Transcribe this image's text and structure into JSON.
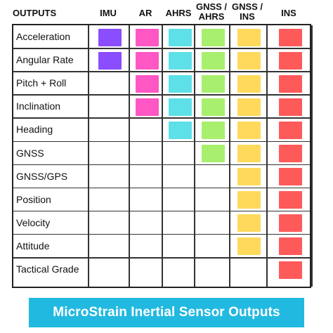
{
  "header": {
    "outputs_label": "OUTPUTS",
    "columns": [
      {
        "key": "imu",
        "line1": "IMU",
        "line2": ""
      },
      {
        "key": "ar",
        "line1": "AR",
        "line2": ""
      },
      {
        "key": "ahrs",
        "line1": "AHRS",
        "line2": ""
      },
      {
        "key": "gnss_ahrs",
        "line1": "GNSS /",
        "line2": "AHRS"
      },
      {
        "key": "gnss_ins",
        "line1": "GNSS /",
        "line2": "INS"
      },
      {
        "key": "ins",
        "line1": "INS",
        "line2": ""
      }
    ]
  },
  "colors": {
    "imu": "#8a4dff",
    "ar": "#ff57c4",
    "ahrs": "#5ee0e8",
    "gnss_ahrs": "#a8ef6e",
    "gnss_ins": "#ffd95c",
    "ins": "#ff5a5a"
  },
  "rows": [
    {
      "label": "Acceleration",
      "marks": [
        1,
        1,
        1,
        1,
        1,
        1
      ]
    },
    {
      "label": "Angular Rate",
      "marks": [
        1,
        1,
        1,
        1,
        1,
        1
      ]
    },
    {
      "label": "Pitch + Roll",
      "marks": [
        0,
        1,
        1,
        1,
        1,
        1
      ]
    },
    {
      "label": "Inclination",
      "marks": [
        0,
        1,
        1,
        1,
        1,
        1
      ]
    },
    {
      "label": "Heading",
      "marks": [
        0,
        0,
        1,
        1,
        1,
        1
      ]
    },
    {
      "label": "GNSS",
      "marks": [
        0,
        0,
        0,
        1,
        1,
        1
      ]
    },
    {
      "label": "GNSS/GPS",
      "marks": [
        0,
        0,
        0,
        0,
        1,
        1
      ]
    },
    {
      "label": "Position",
      "marks": [
        0,
        0,
        0,
        0,
        1,
        1
      ]
    },
    {
      "label": "Velocity",
      "marks": [
        0,
        0,
        0,
        0,
        1,
        1
      ]
    },
    {
      "label": "Attitude",
      "marks": [
        0,
        0,
        0,
        0,
        1,
        1
      ]
    },
    {
      "label": "Tactical Grade",
      "marks": [
        0,
        0,
        0,
        0,
        0,
        1
      ]
    }
  ],
  "footer": {
    "title": "MicroStrain Inertial Sensor Outputs"
  }
}
